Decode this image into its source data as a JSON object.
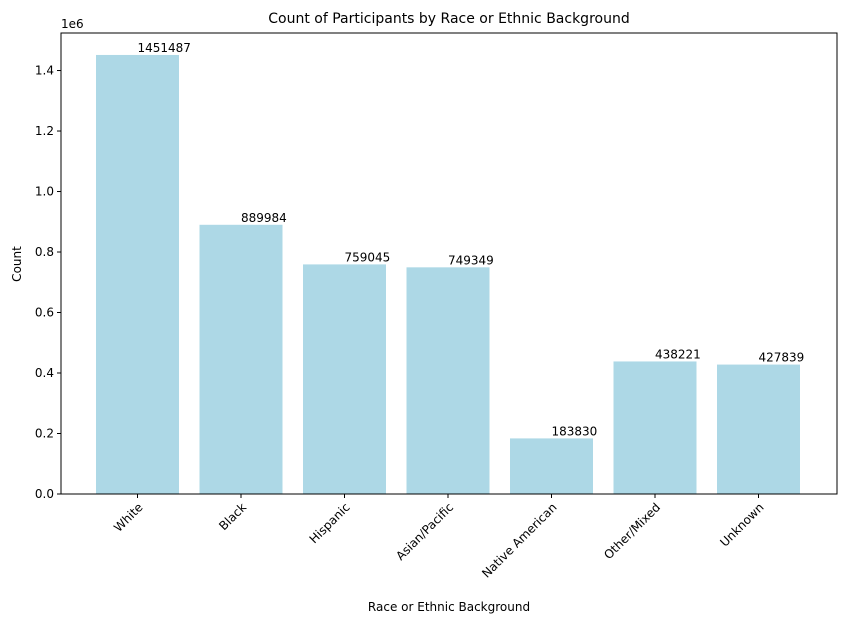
{
  "chart_data": {
    "type": "bar",
    "title": "Count of Participants by Race or Ethnic Background",
    "xlabel": "Race or Ethnic Background",
    "ylabel": "Count",
    "y_offset_label": "1e6",
    "categories": [
      "White",
      "Black",
      "Hispanic",
      "Asian/Pacific",
      "Native American",
      "Other/Mixed",
      "Unknown"
    ],
    "values": [
      1451487,
      889984,
      759045,
      749349,
      183830,
      438221,
      427839
    ],
    "value_labels": [
      "1451487",
      "889984",
      "759045",
      "749349",
      "183830",
      "438221",
      "427839"
    ],
    "ylim": [
      0,
      1524061
    ],
    "yticks": [
      0,
      200000,
      400000,
      600000,
      800000,
      1000000,
      1200000,
      1400000
    ],
    "ytick_labels": [
      "0.0",
      "0.2",
      "0.4",
      "0.6",
      "0.8",
      "1.0",
      "1.2",
      "1.4"
    ],
    "bar_color": "#add8e6",
    "grid": false,
    "legend": "none"
  }
}
